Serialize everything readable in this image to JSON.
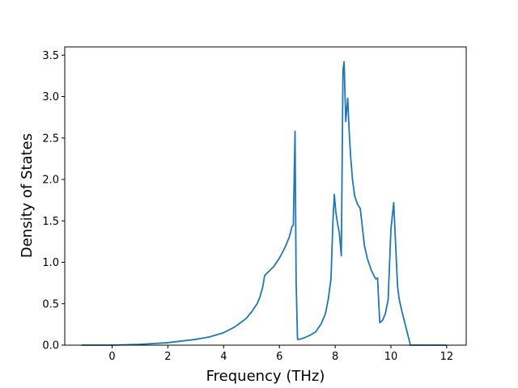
{
  "chart_data": {
    "type": "line",
    "title": "",
    "xlabel": "Frequency (THz)",
    "ylabel": "Density of States",
    "xlim": [
      -1.7,
      12.7
    ],
    "ylim": [
      0.0,
      3.6
    ],
    "xticks": [
      0,
      2,
      4,
      6,
      8,
      10,
      12
    ],
    "xtick_labels": [
      "0",
      "2",
      "4",
      "6",
      "8",
      "10",
      "12"
    ],
    "yticks": [
      0.0,
      0.5,
      1.0,
      1.5,
      2.0,
      2.5,
      3.0,
      3.5
    ],
    "ytick_labels": [
      "0.0",
      "0.5",
      "1.0",
      "1.5",
      "2.0",
      "2.5",
      "3.0",
      "3.5"
    ],
    "grid": false,
    "legend": "none",
    "colors": {
      "line": "#1f77b4",
      "axes": "#000000",
      "background": "#ffffff"
    },
    "series": [
      {
        "x": [
          -1.1,
          0.0,
          1.0,
          2.0,
          3.0,
          3.5,
          4.0,
          4.4,
          4.8,
          5.0,
          5.2,
          5.3,
          5.4,
          5.47,
          5.8,
          6.0,
          6.2,
          6.35,
          6.45,
          6.5,
          6.56,
          6.6,
          6.65,
          6.72,
          6.9,
          7.1,
          7.3,
          7.5,
          7.65,
          7.75,
          7.85,
          7.92,
          7.97,
          8.02,
          8.07,
          8.15,
          8.22,
          8.28,
          8.32,
          8.38,
          8.45,
          8.5,
          8.55,
          8.62,
          8.7,
          8.8,
          8.9,
          9.0,
          9.05,
          9.15,
          9.3,
          9.45,
          9.52,
          9.6,
          9.7,
          9.8,
          9.9,
          10.0,
          10.1,
          10.18,
          10.24,
          10.3,
          10.4,
          10.55,
          10.7,
          10.85,
          10.95,
          11.5,
          12.0
        ],
        "y": [
          0.0,
          0.0,
          0.01,
          0.03,
          0.07,
          0.1,
          0.15,
          0.22,
          0.32,
          0.4,
          0.5,
          0.58,
          0.7,
          0.84,
          0.95,
          1.05,
          1.18,
          1.3,
          1.43,
          1.45,
          2.58,
          0.75,
          0.07,
          0.07,
          0.09,
          0.12,
          0.16,
          0.26,
          0.38,
          0.55,
          0.8,
          1.5,
          1.82,
          1.62,
          1.5,
          1.35,
          1.08,
          3.32,
          3.42,
          2.7,
          2.98,
          2.6,
          2.3,
          2.0,
          1.8,
          1.7,
          1.65,
          1.35,
          1.2,
          1.05,
          0.9,
          0.8,
          0.81,
          0.27,
          0.3,
          0.38,
          0.55,
          1.4,
          1.72,
          1.13,
          0.7,
          0.55,
          0.4,
          0.2,
          0.0,
          0.0,
          0.0,
          0.0,
          0.0
        ]
      }
    ]
  }
}
